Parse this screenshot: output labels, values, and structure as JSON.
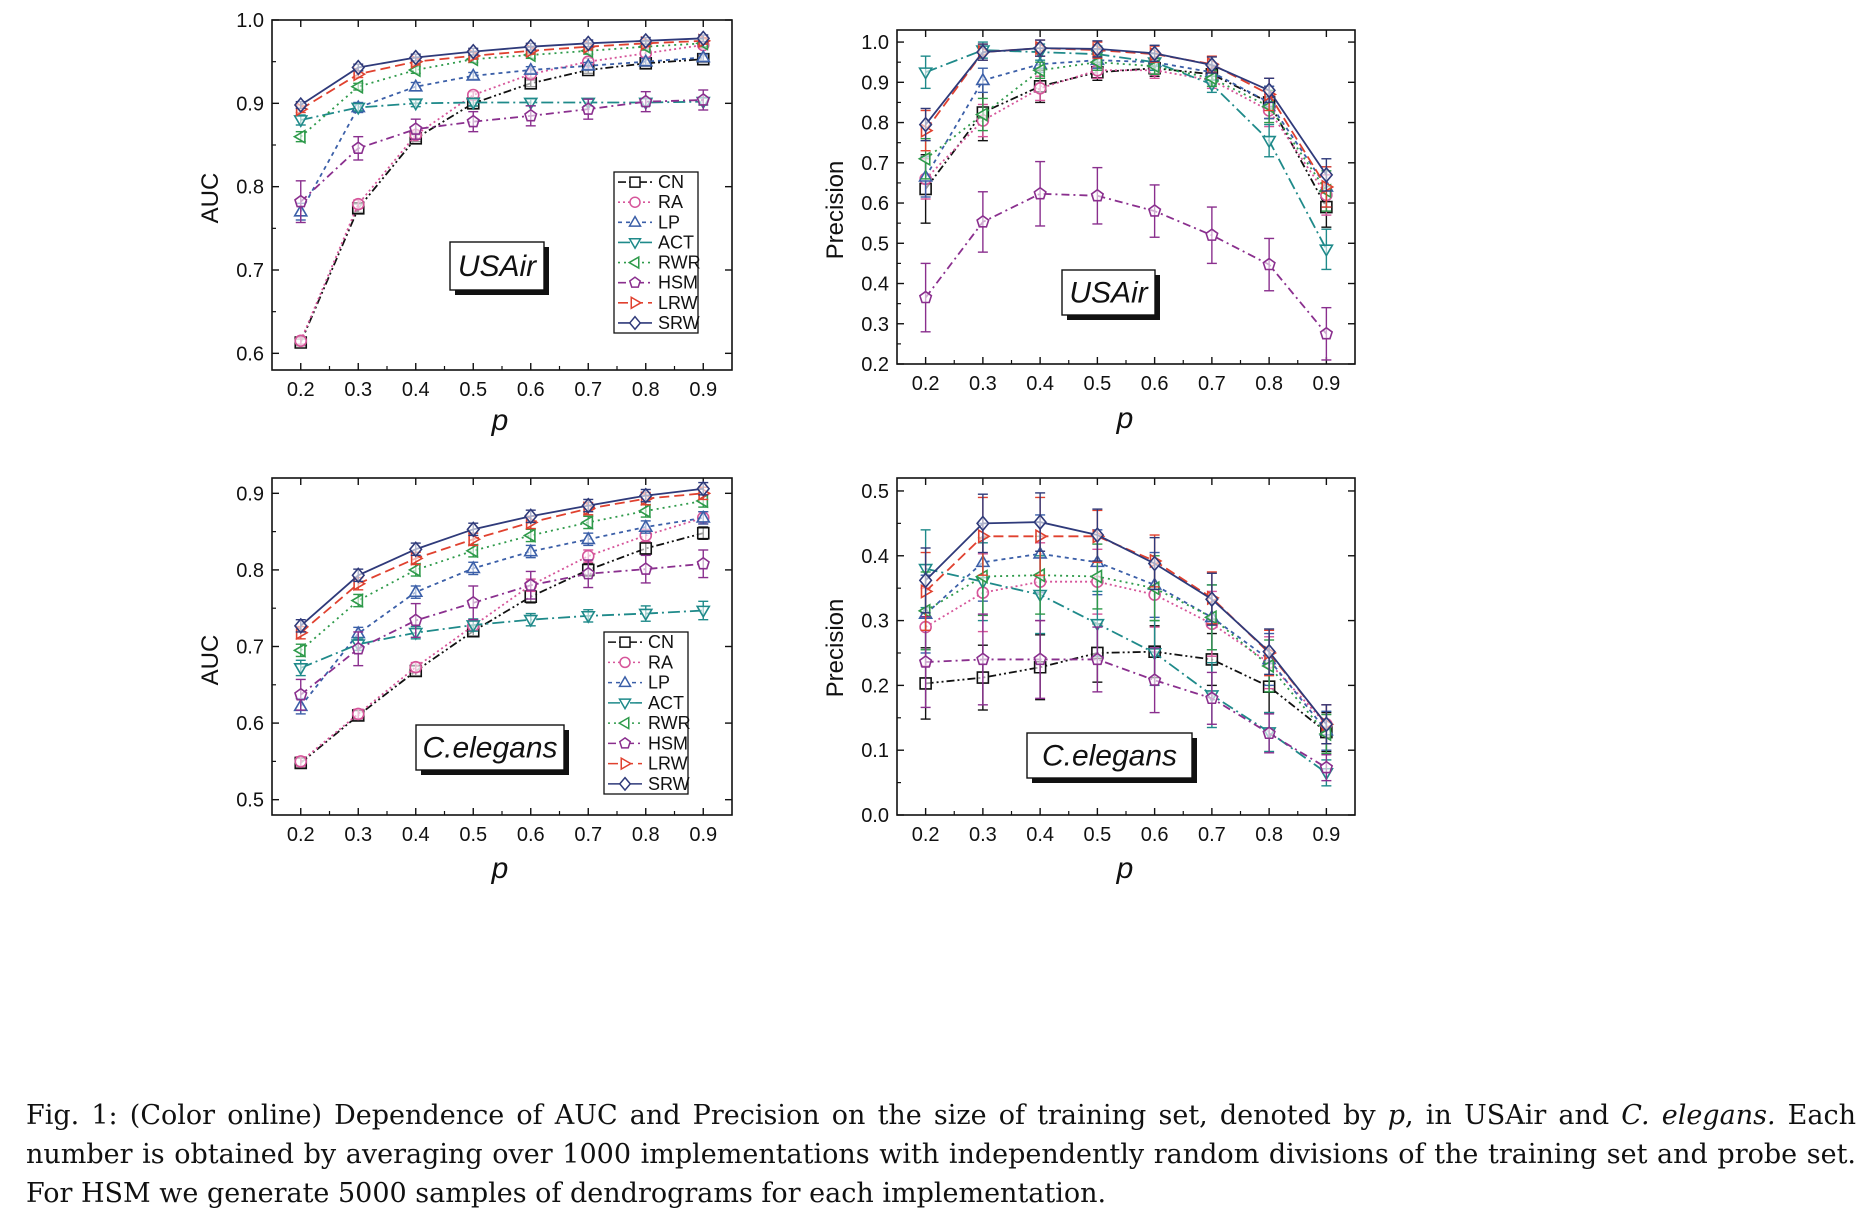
{
  "caption": {
    "prefix": "Fig. 1: (Color online) Dependence of AUC and Precision on the size of training set, denoted by ",
    "var": "p",
    "mid": ", in USAir and ",
    "species": "C. elegans.",
    "rest": " Each number is obtained by averaging over 1000 implementations with independently random divisions of the training set and probe set. For HSM we generate 5000 samples of dendrograms for each implementation."
  },
  "styles": {
    "CN": {
      "color": "#111111",
      "marker": "square",
      "dash": "8,3,2,3,2,3"
    },
    "RA": {
      "color": "#d6559a",
      "marker": "circle",
      "dash": "2,3"
    },
    "LP": {
      "color": "#3b5fa8",
      "marker": "triangle-up",
      "dash": "4,4"
    },
    "ACT": {
      "color": "#1f8a8a",
      "marker": "triangle-down",
      "dash": "12,4,2,4"
    },
    "RWR": {
      "color": "#2e9a4a",
      "marker": "triangle-left",
      "dash": "2,4"
    },
    "HSM": {
      "color": "#8a2f8e",
      "marker": "pentagon",
      "dash": "8,4,2,4"
    },
    "LRW": {
      "color": "#e0412f",
      "marker": "triangle-right",
      "dash": "10,5"
    },
    "SRW": {
      "color": "#2f3a7a",
      "marker": "diamond",
      "dash": ""
    }
  },
  "chart_data": [
    {
      "type": "line",
      "dataset_label": "USAir",
      "xlabel": "p",
      "ylabel": "AUC",
      "xlim": [
        0.15,
        0.95
      ],
      "ylim": [
        0.58,
        1.0
      ],
      "xticks": [
        "0.2",
        "0.3",
        "0.4",
        "0.5",
        "0.6",
        "0.7",
        "0.8",
        "0.9"
      ],
      "yticks": [
        "0.6",
        "0.7",
        "0.8",
        "0.9",
        "1.0"
      ],
      "legend": "right-middle",
      "x": [
        0.2,
        0.3,
        0.4,
        0.5,
        0.6,
        0.7,
        0.8,
        0.9
      ],
      "series": [
        {
          "name": "CN",
          "values": [
            0.613,
            0.774,
            0.858,
            0.9,
            0.924,
            0.94,
            0.948,
            0.953
          ],
          "err": [
            0.004,
            0.005,
            0.004,
            0.004,
            0.004,
            0.004,
            0.004,
            0.004
          ]
        },
        {
          "name": "RA",
          "values": [
            0.615,
            0.779,
            0.862,
            0.91,
            0.935,
            0.95,
            0.96,
            0.97
          ],
          "err": [
            0.004,
            0.005,
            0.004,
            0.004,
            0.004,
            0.004,
            0.004,
            0.004
          ]
        },
        {
          "name": "LP",
          "values": [
            0.77,
            0.895,
            0.92,
            0.933,
            0.94,
            0.945,
            0.95,
            0.955
          ],
          "err": [
            0.01,
            0.006,
            0.005,
            0.004,
            0.004,
            0.004,
            0.004,
            0.004
          ]
        },
        {
          "name": "ACT",
          "values": [
            0.88,
            0.895,
            0.9,
            0.901,
            0.901,
            0.901,
            0.901,
            0.902
          ],
          "err": [
            0.006,
            0.004,
            0.004,
            0.004,
            0.004,
            0.004,
            0.004,
            0.004
          ]
        },
        {
          "name": "RWR",
          "values": [
            0.86,
            0.92,
            0.94,
            0.953,
            0.958,
            0.963,
            0.968,
            0.972
          ],
          "err": [
            0.006,
            0.004,
            0.004,
            0.004,
            0.004,
            0.004,
            0.004,
            0.004
          ]
        },
        {
          "name": "HSM",
          "values": [
            0.782,
            0.846,
            0.869,
            0.878,
            0.885,
            0.893,
            0.902,
            0.904
          ],
          "err": [
            0.025,
            0.014,
            0.012,
            0.012,
            0.012,
            0.012,
            0.012,
            0.012
          ]
        },
        {
          "name": "LRW",
          "values": [
            0.893,
            0.935,
            0.95,
            0.957,
            0.963,
            0.968,
            0.972,
            0.975
          ],
          "err": [
            0.004,
            0.004,
            0.004,
            0.004,
            0.004,
            0.004,
            0.004,
            0.004
          ]
        },
        {
          "name": "SRW",
          "values": [
            0.898,
            0.943,
            0.955,
            0.962,
            0.968,
            0.972,
            0.975,
            0.978
          ],
          "err": [
            0.004,
            0.004,
            0.004,
            0.004,
            0.004,
            0.004,
            0.004,
            0.004
          ]
        }
      ]
    },
    {
      "type": "line",
      "dataset_label": "USAir",
      "xlabel": "p",
      "ylabel": "Precision",
      "xlim": [
        0.15,
        0.95
      ],
      "ylim": [
        0.2,
        1.03
      ],
      "xticks": [
        "0.2",
        "0.3",
        "0.4",
        "0.5",
        "0.6",
        "0.7",
        "0.8",
        "0.9"
      ],
      "yticks": [
        "0.2",
        "0.3",
        "0.4",
        "0.5",
        "0.6",
        "0.7",
        "0.8",
        "0.9",
        "1.0"
      ],
      "legend": "none",
      "x": [
        0.2,
        0.3,
        0.4,
        0.5,
        0.6,
        0.7,
        0.8,
        0.9
      ],
      "series": [
        {
          "name": "CN",
          "values": [
            0.635,
            0.825,
            0.89,
            0.925,
            0.935,
            0.92,
            0.85,
            0.59
          ],
          "err": [
            0.085,
            0.07,
            0.04,
            0.02,
            0.02,
            0.02,
            0.04,
            0.05
          ]
        },
        {
          "name": "RA",
          "values": [
            0.66,
            0.805,
            0.885,
            0.93,
            0.93,
            0.905,
            0.83,
            0.62
          ],
          "err": [
            0.05,
            0.04,
            0.03,
            0.02,
            0.02,
            0.02,
            0.04,
            0.05
          ]
        },
        {
          "name": "LP",
          "values": [
            0.665,
            0.905,
            0.945,
            0.955,
            0.95,
            0.925,
            0.85,
            0.64
          ],
          "err": [
            0.05,
            0.03,
            0.02,
            0.02,
            0.02,
            0.02,
            0.04,
            0.05
          ]
        },
        {
          "name": "ACT",
          "values": [
            0.925,
            0.98,
            0.975,
            0.97,
            0.95,
            0.895,
            0.755,
            0.485
          ],
          "err": [
            0.04,
            0.02,
            0.02,
            0.02,
            0.02,
            0.02,
            0.04,
            0.05
          ]
        },
        {
          "name": "RWR",
          "values": [
            0.71,
            0.82,
            0.93,
            0.95,
            0.94,
            0.91,
            0.84,
            0.63
          ],
          "err": [
            0.05,
            0.04,
            0.02,
            0.02,
            0.02,
            0.02,
            0.04,
            0.05
          ]
        },
        {
          "name": "HSM",
          "values": [
            0.365,
            0.553,
            0.623,
            0.618,
            0.58,
            0.52,
            0.447,
            0.275
          ],
          "err": [
            0.085,
            0.075,
            0.08,
            0.07,
            0.065,
            0.07,
            0.065,
            0.065
          ]
        },
        {
          "name": "LRW",
          "values": [
            0.78,
            0.975,
            0.985,
            0.98,
            0.97,
            0.945,
            0.87,
            0.64
          ],
          "err": [
            0.05,
            0.02,
            0.02,
            0.02,
            0.02,
            0.02,
            0.04,
            0.05
          ]
        },
        {
          "name": "SRW",
          "values": [
            0.795,
            0.975,
            0.985,
            0.983,
            0.972,
            0.943,
            0.88,
            0.67
          ],
          "err": [
            0.04,
            0.02,
            0.02,
            0.02,
            0.02,
            0.02,
            0.03,
            0.04
          ]
        }
      ]
    },
    {
      "type": "line",
      "dataset_label": "C.elegans",
      "xlabel": "p",
      "ylabel": "AUC",
      "xlim": [
        0.15,
        0.95
      ],
      "ylim": [
        0.48,
        0.92
      ],
      "xticks": [
        "0.2",
        "0.3",
        "0.4",
        "0.5",
        "0.6",
        "0.7",
        "0.8",
        "0.9"
      ],
      "yticks": [
        "0.5",
        "0.6",
        "0.7",
        "0.8",
        "0.9"
      ],
      "legend": "bottom-right",
      "x": [
        0.2,
        0.3,
        0.4,
        0.5,
        0.6,
        0.7,
        0.8,
        0.9
      ],
      "series": [
        {
          "name": "CN",
          "values": [
            0.548,
            0.61,
            0.668,
            0.72,
            0.765,
            0.8,
            0.828,
            0.848
          ],
          "err": [
            0.006,
            0.006,
            0.006,
            0.006,
            0.008,
            0.008,
            0.008,
            0.008
          ]
        },
        {
          "name": "RA",
          "values": [
            0.55,
            0.612,
            0.673,
            0.727,
            0.78,
            0.818,
            0.845,
            0.868
          ],
          "err": [
            0.006,
            0.006,
            0.006,
            0.006,
            0.008,
            0.008,
            0.008,
            0.008
          ]
        },
        {
          "name": "LP",
          "values": [
            0.622,
            0.717,
            0.771,
            0.802,
            0.824,
            0.84,
            0.856,
            0.868
          ],
          "err": [
            0.01,
            0.008,
            0.008,
            0.008,
            0.008,
            0.008,
            0.008,
            0.008
          ]
        },
        {
          "name": "ACT",
          "values": [
            0.672,
            0.703,
            0.718,
            0.728,
            0.735,
            0.74,
            0.743,
            0.747
          ],
          "err": [
            0.01,
            0.008,
            0.008,
            0.008,
            0.008,
            0.008,
            0.01,
            0.012
          ]
        },
        {
          "name": "RWR",
          "values": [
            0.695,
            0.76,
            0.8,
            0.825,
            0.845,
            0.862,
            0.877,
            0.89
          ],
          "err": [
            0.008,
            0.008,
            0.008,
            0.008,
            0.008,
            0.008,
            0.008,
            0.008
          ]
        },
        {
          "name": "HSM",
          "values": [
            0.637,
            0.697,
            0.734,
            0.757,
            0.78,
            0.795,
            0.801,
            0.808
          ],
          "err": [
            0.02,
            0.022,
            0.022,
            0.022,
            0.018,
            0.018,
            0.018,
            0.018
          ]
        },
        {
          "name": "LRW",
          "values": [
            0.718,
            0.782,
            0.815,
            0.84,
            0.862,
            0.88,
            0.893,
            0.9
          ],
          "err": [
            0.008,
            0.008,
            0.008,
            0.008,
            0.008,
            0.008,
            0.008,
            0.008
          ]
        },
        {
          "name": "SRW",
          "values": [
            0.727,
            0.793,
            0.827,
            0.853,
            0.87,
            0.884,
            0.897,
            0.906
          ],
          "err": [
            0.008,
            0.008,
            0.008,
            0.008,
            0.008,
            0.008,
            0.008,
            0.008
          ]
        }
      ]
    },
    {
      "type": "line",
      "dataset_label": "C.elegans",
      "xlabel": "p",
      "ylabel": "Precision",
      "xlim": [
        0.15,
        0.95
      ],
      "ylim": [
        0.0,
        0.52
      ],
      "xticks": [
        "0.2",
        "0.3",
        "0.4",
        "0.5",
        "0.6",
        "0.7",
        "0.8",
        "0.9"
      ],
      "yticks": [
        "0.0",
        "0.1",
        "0.2",
        "0.3",
        "0.4",
        "0.5"
      ],
      "legend": "none",
      "x": [
        0.2,
        0.3,
        0.4,
        0.5,
        0.6,
        0.7,
        0.8,
        0.9
      ],
      "series": [
        {
          "name": "CN",
          "values": [
            0.203,
            0.212,
            0.228,
            0.25,
            0.252,
            0.24,
            0.198,
            0.128
          ],
          "err": [
            0.055,
            0.05,
            0.05,
            0.045,
            0.04,
            0.04,
            0.04,
            0.03
          ]
        },
        {
          "name": "RA",
          "values": [
            0.29,
            0.343,
            0.36,
            0.36,
            0.34,
            0.295,
            0.235,
            0.14
          ],
          "err": [
            0.06,
            0.06,
            0.06,
            0.05,
            0.05,
            0.05,
            0.04,
            0.03
          ]
        },
        {
          "name": "LP",
          "values": [
            0.31,
            0.39,
            0.403,
            0.39,
            0.355,
            0.305,
            0.24,
            0.13
          ],
          "err": [
            0.06,
            0.06,
            0.06,
            0.05,
            0.05,
            0.05,
            0.04,
            0.03
          ]
        },
        {
          "name": "ACT",
          "values": [
            0.38,
            0.36,
            0.34,
            0.295,
            0.25,
            0.185,
            0.128,
            0.065
          ],
          "err": [
            0.06,
            0.06,
            0.06,
            0.05,
            0.05,
            0.05,
            0.03,
            0.02
          ]
        },
        {
          "name": "RWR",
          "values": [
            0.315,
            0.368,
            0.37,
            0.368,
            0.35,
            0.305,
            0.23,
            0.125
          ],
          "err": [
            0.06,
            0.06,
            0.06,
            0.05,
            0.05,
            0.05,
            0.04,
            0.03
          ]
        },
        {
          "name": "HSM",
          "values": [
            0.236,
            0.24,
            0.24,
            0.24,
            0.208,
            0.18,
            0.126,
            0.073
          ],
          "err": [
            0.07,
            0.07,
            0.06,
            0.05,
            0.05,
            0.04,
            0.03,
            0.02
          ]
        },
        {
          "name": "LRW",
          "values": [
            0.345,
            0.43,
            0.43,
            0.43,
            0.392,
            0.335,
            0.25,
            0.14
          ],
          "err": [
            0.06,
            0.06,
            0.06,
            0.04,
            0.04,
            0.04,
            0.035,
            0.03
          ]
        },
        {
          "name": "SRW",
          "values": [
            0.362,
            0.45,
            0.452,
            0.432,
            0.388,
            0.333,
            0.252,
            0.14
          ],
          "err": [
            0.05,
            0.045,
            0.045,
            0.04,
            0.04,
            0.04,
            0.035,
            0.03
          ]
        }
      ]
    }
  ]
}
